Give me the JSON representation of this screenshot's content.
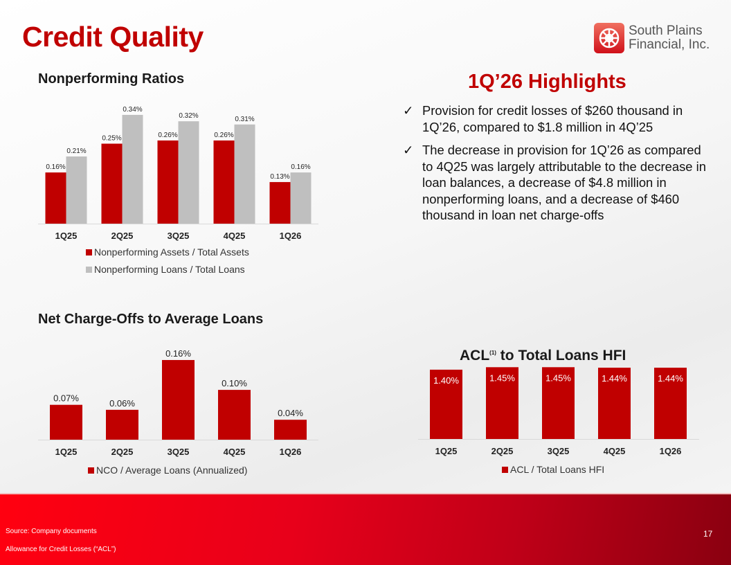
{
  "title": "Credit Quality",
  "logo": {
    "line1": "South Plains",
    "line2": "Financial, Inc."
  },
  "highlights": {
    "title": "1Q’26 Highlights",
    "items": [
      "Provision for credit losses of $260 thousand in 1Q’26, compared to $1.8 million in 4Q’25",
      "The decrease in provision for 1Q’26 as compared to 4Q25 was largely attributable to the decrease in loan balances, a decrease of $4.8 million in nonperforming loans, and a decrease of $460 thousand in loan net charge-offs"
    ],
    "bullet_icon": "checkmark-icon"
  },
  "footer": {
    "source": "Source: Company documents",
    "note": "Allowance for Credit Losses (“ACL”)",
    "page": "17"
  },
  "colors": {
    "red": "#c00000",
    "gray": "#bfbfbf"
  },
  "chart_data": [
    {
      "type": "bar",
      "title": "Nonperforming Ratios",
      "categories": [
        "1Q25",
        "2Q25",
        "3Q25",
        "4Q25",
        "1Q26"
      ],
      "series": [
        {
          "name": "Nonperforming Assets / Total Assets",
          "values": [
            0.16,
            0.25,
            0.26,
            0.26,
            0.13
          ],
          "labels": [
            "0.16%",
            "0.25%",
            "0.26%",
            "0.26%",
            "0.13%"
          ],
          "color": "#c00000"
        },
        {
          "name": "Nonperforming Loans / Total Loans",
          "values": [
            0.21,
            0.34,
            0.32,
            0.31,
            0.16
          ],
          "labels": [
            "0.21%",
            "0.34%",
            "0.32%",
            "0.31%",
            "0.16%"
          ],
          "color": "#bfbfbf"
        }
      ],
      "unit": "%",
      "legend": "bottom",
      "grid": false
    },
    {
      "type": "bar",
      "title": "Net Charge-Offs to Average Loans",
      "categories": [
        "1Q25",
        "2Q25",
        "3Q25",
        "4Q25",
        "1Q26"
      ],
      "series": [
        {
          "name": "NCO / Average Loans (Annualized)",
          "values": [
            0.07,
            0.06,
            0.16,
            0.1,
            0.04
          ],
          "labels": [
            "0.07%",
            "0.06%",
            "0.16%",
            "0.10%",
            "0.04%"
          ],
          "color": "#c00000"
        }
      ],
      "unit": "%",
      "legend": "bottom",
      "grid": false
    },
    {
      "type": "bar",
      "title": "ACL",
      "title_sup": "(1)",
      "title_rest": " to Total Loans HFI",
      "categories": [
        "1Q25",
        "2Q25",
        "3Q25",
        "4Q25",
        "1Q26"
      ],
      "series": [
        {
          "name": "ACL / Total Loans HFI",
          "values": [
            1.4,
            1.45,
            1.45,
            1.44,
            1.44
          ],
          "labels": [
            "1.40%",
            "1.45%",
            "1.45%",
            "1.44%",
            "1.44%"
          ],
          "color": "#c00000"
        }
      ],
      "unit": "%",
      "legend": "bottom",
      "grid": false
    }
  ]
}
